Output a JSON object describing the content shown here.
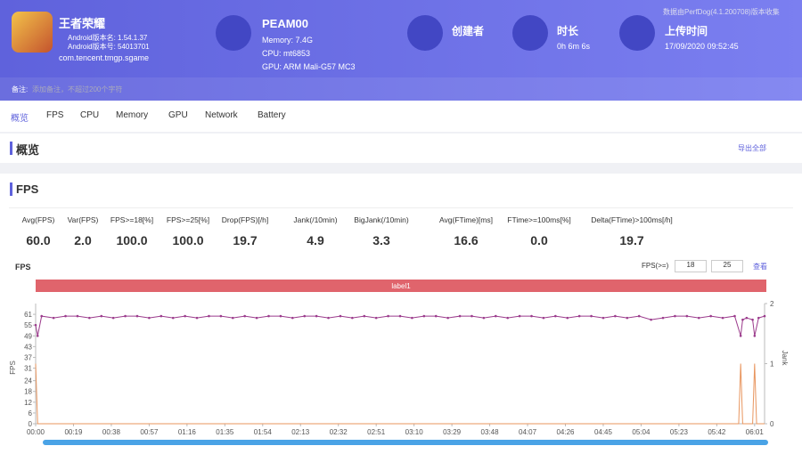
{
  "header": {
    "app_name": "王者荣耀",
    "android_version": "Android版本名: 1.54.1.37",
    "android_code": "Android版本号: 54013701",
    "package": "com.tencent.tmgp.sgame",
    "device": "PEAM00",
    "memory": "Memory: 7.4G",
    "cpu": "CPU: mt6853",
    "gpu": "GPU: ARM Mali-G57 MC3",
    "creator_label": "创建者",
    "duration_label": "时长",
    "duration": "0h 6m 6s",
    "upload_label": "上传时间",
    "upload_time": "17/09/2020 09:52:45",
    "data_source": "数据由PerfDog(4.1.200708)版本收集",
    "note_label": "备注:",
    "note_placeholder": "添加备注，不超过200个字符"
  },
  "tabs": [
    "概览",
    "FPS",
    "CPU",
    "Memory",
    "GPU",
    "Network",
    "Battery"
  ],
  "overview": {
    "title": "概览",
    "export": "导出全部"
  },
  "fps_section": {
    "title": "FPS",
    "stats": [
      {
        "label": "Avg(FPS)",
        "value": "60.0"
      },
      {
        "label": "Var(FPS)",
        "value": "2.0"
      },
      {
        "label": "FPS>=18[%]",
        "value": "100.0"
      },
      {
        "label": "FPS>=25[%]",
        "value": "100.0"
      },
      {
        "label": "Drop(FPS)[/h]",
        "value": "19.7"
      },
      {
        "label": "Jank(/10min)",
        "value": "4.9"
      },
      {
        "label": "BigJank(/10min)",
        "value": "3.3"
      },
      {
        "label": "Avg(FTime)[ms]",
        "value": "16.6"
      },
      {
        "label": "FTime>=100ms[%]",
        "value": "0.0"
      },
      {
        "label": "Delta(FTime)>100ms[/h]",
        "value": "19.7"
      }
    ],
    "filter_label": "FPS(>=)",
    "filter_values": [
      "18",
      "25"
    ],
    "apply": "查看"
  },
  "chart_data": {
    "type": "line",
    "title": "FPS",
    "band_label": "label1",
    "y_label": "FPS",
    "y2_label": "Jank",
    "xlim": [
      0,
      366
    ],
    "xticks": [
      {
        "value": 0,
        "label": "00:00"
      },
      {
        "value": 19,
        "label": "00:19"
      },
      {
        "value": 38,
        "label": "00:38"
      },
      {
        "value": 57,
        "label": "00:57"
      },
      {
        "value": 76,
        "label": "01:16"
      },
      {
        "value": 95,
        "label": "01:35"
      },
      {
        "value": 114,
        "label": "01:54"
      },
      {
        "value": 133,
        "label": "02:13"
      },
      {
        "value": 152,
        "label": "02:32"
      },
      {
        "value": 171,
        "label": "02:51"
      },
      {
        "value": 190,
        "label": "03:10"
      },
      {
        "value": 209,
        "label": "03:29"
      },
      {
        "value": 228,
        "label": "03:48"
      },
      {
        "value": 247,
        "label": "04:07"
      },
      {
        "value": 266,
        "label": "04:26"
      },
      {
        "value": 285,
        "label": "04:45"
      },
      {
        "value": 304,
        "label": "05:04"
      },
      {
        "value": 323,
        "label": "05:23"
      },
      {
        "value": 342,
        "label": "05:42"
      },
      {
        "value": 361,
        "label": "06:01"
      }
    ],
    "ylim": [
      0,
      67
    ],
    "yticks": [
      0,
      6,
      12,
      18,
      24,
      31,
      37,
      43,
      49,
      55,
      61
    ],
    "y2lim": [
      0,
      2
    ],
    "y2ticks": [
      0,
      1,
      2
    ],
    "series": [
      {
        "name": "FPS",
        "color": "#9b3b8c",
        "x": [
          0,
          1,
          3,
          9,
          15,
          21,
          27,
          33,
          39,
          45,
          51,
          57,
          63,
          69,
          75,
          81,
          87,
          93,
          99,
          105,
          111,
          117,
          123,
          129,
          135,
          141,
          147,
          153,
          159,
          165,
          171,
          177,
          183,
          189,
          195,
          201,
          207,
          213,
          219,
          225,
          231,
          237,
          243,
          249,
          255,
          261,
          267,
          273,
          279,
          285,
          291,
          297,
          303,
          309,
          315,
          321,
          327,
          333,
          339,
          345,
          351,
          354,
          355,
          357,
          360,
          361,
          363,
          366
        ],
        "values": [
          55,
          49,
          60,
          59,
          60,
          60,
          59,
          60,
          59,
          60,
          60,
          59,
          60,
          59,
          60,
          59,
          60,
          60,
          59,
          60,
          59,
          60,
          60,
          59,
          60,
          60,
          59,
          60,
          59,
          60,
          59,
          60,
          60,
          59,
          60,
          60,
          59,
          60,
          60,
          59,
          60,
          59,
          60,
          60,
          59,
          60,
          59,
          60,
          60,
          59,
          60,
          59,
          60,
          58,
          59,
          60,
          60,
          59,
          60,
          59,
          60,
          49,
          58,
          59,
          58,
          49,
          59,
          60
        ]
      },
      {
        "name": "Jank",
        "color": "#e8955e",
        "axis": "y2",
        "x": [
          0,
          1,
          353,
          354,
          355,
          360,
          361,
          362,
          366
        ],
        "values": [
          1,
          0,
          0,
          1,
          0,
          0,
          1,
          0,
          0
        ]
      }
    ]
  }
}
